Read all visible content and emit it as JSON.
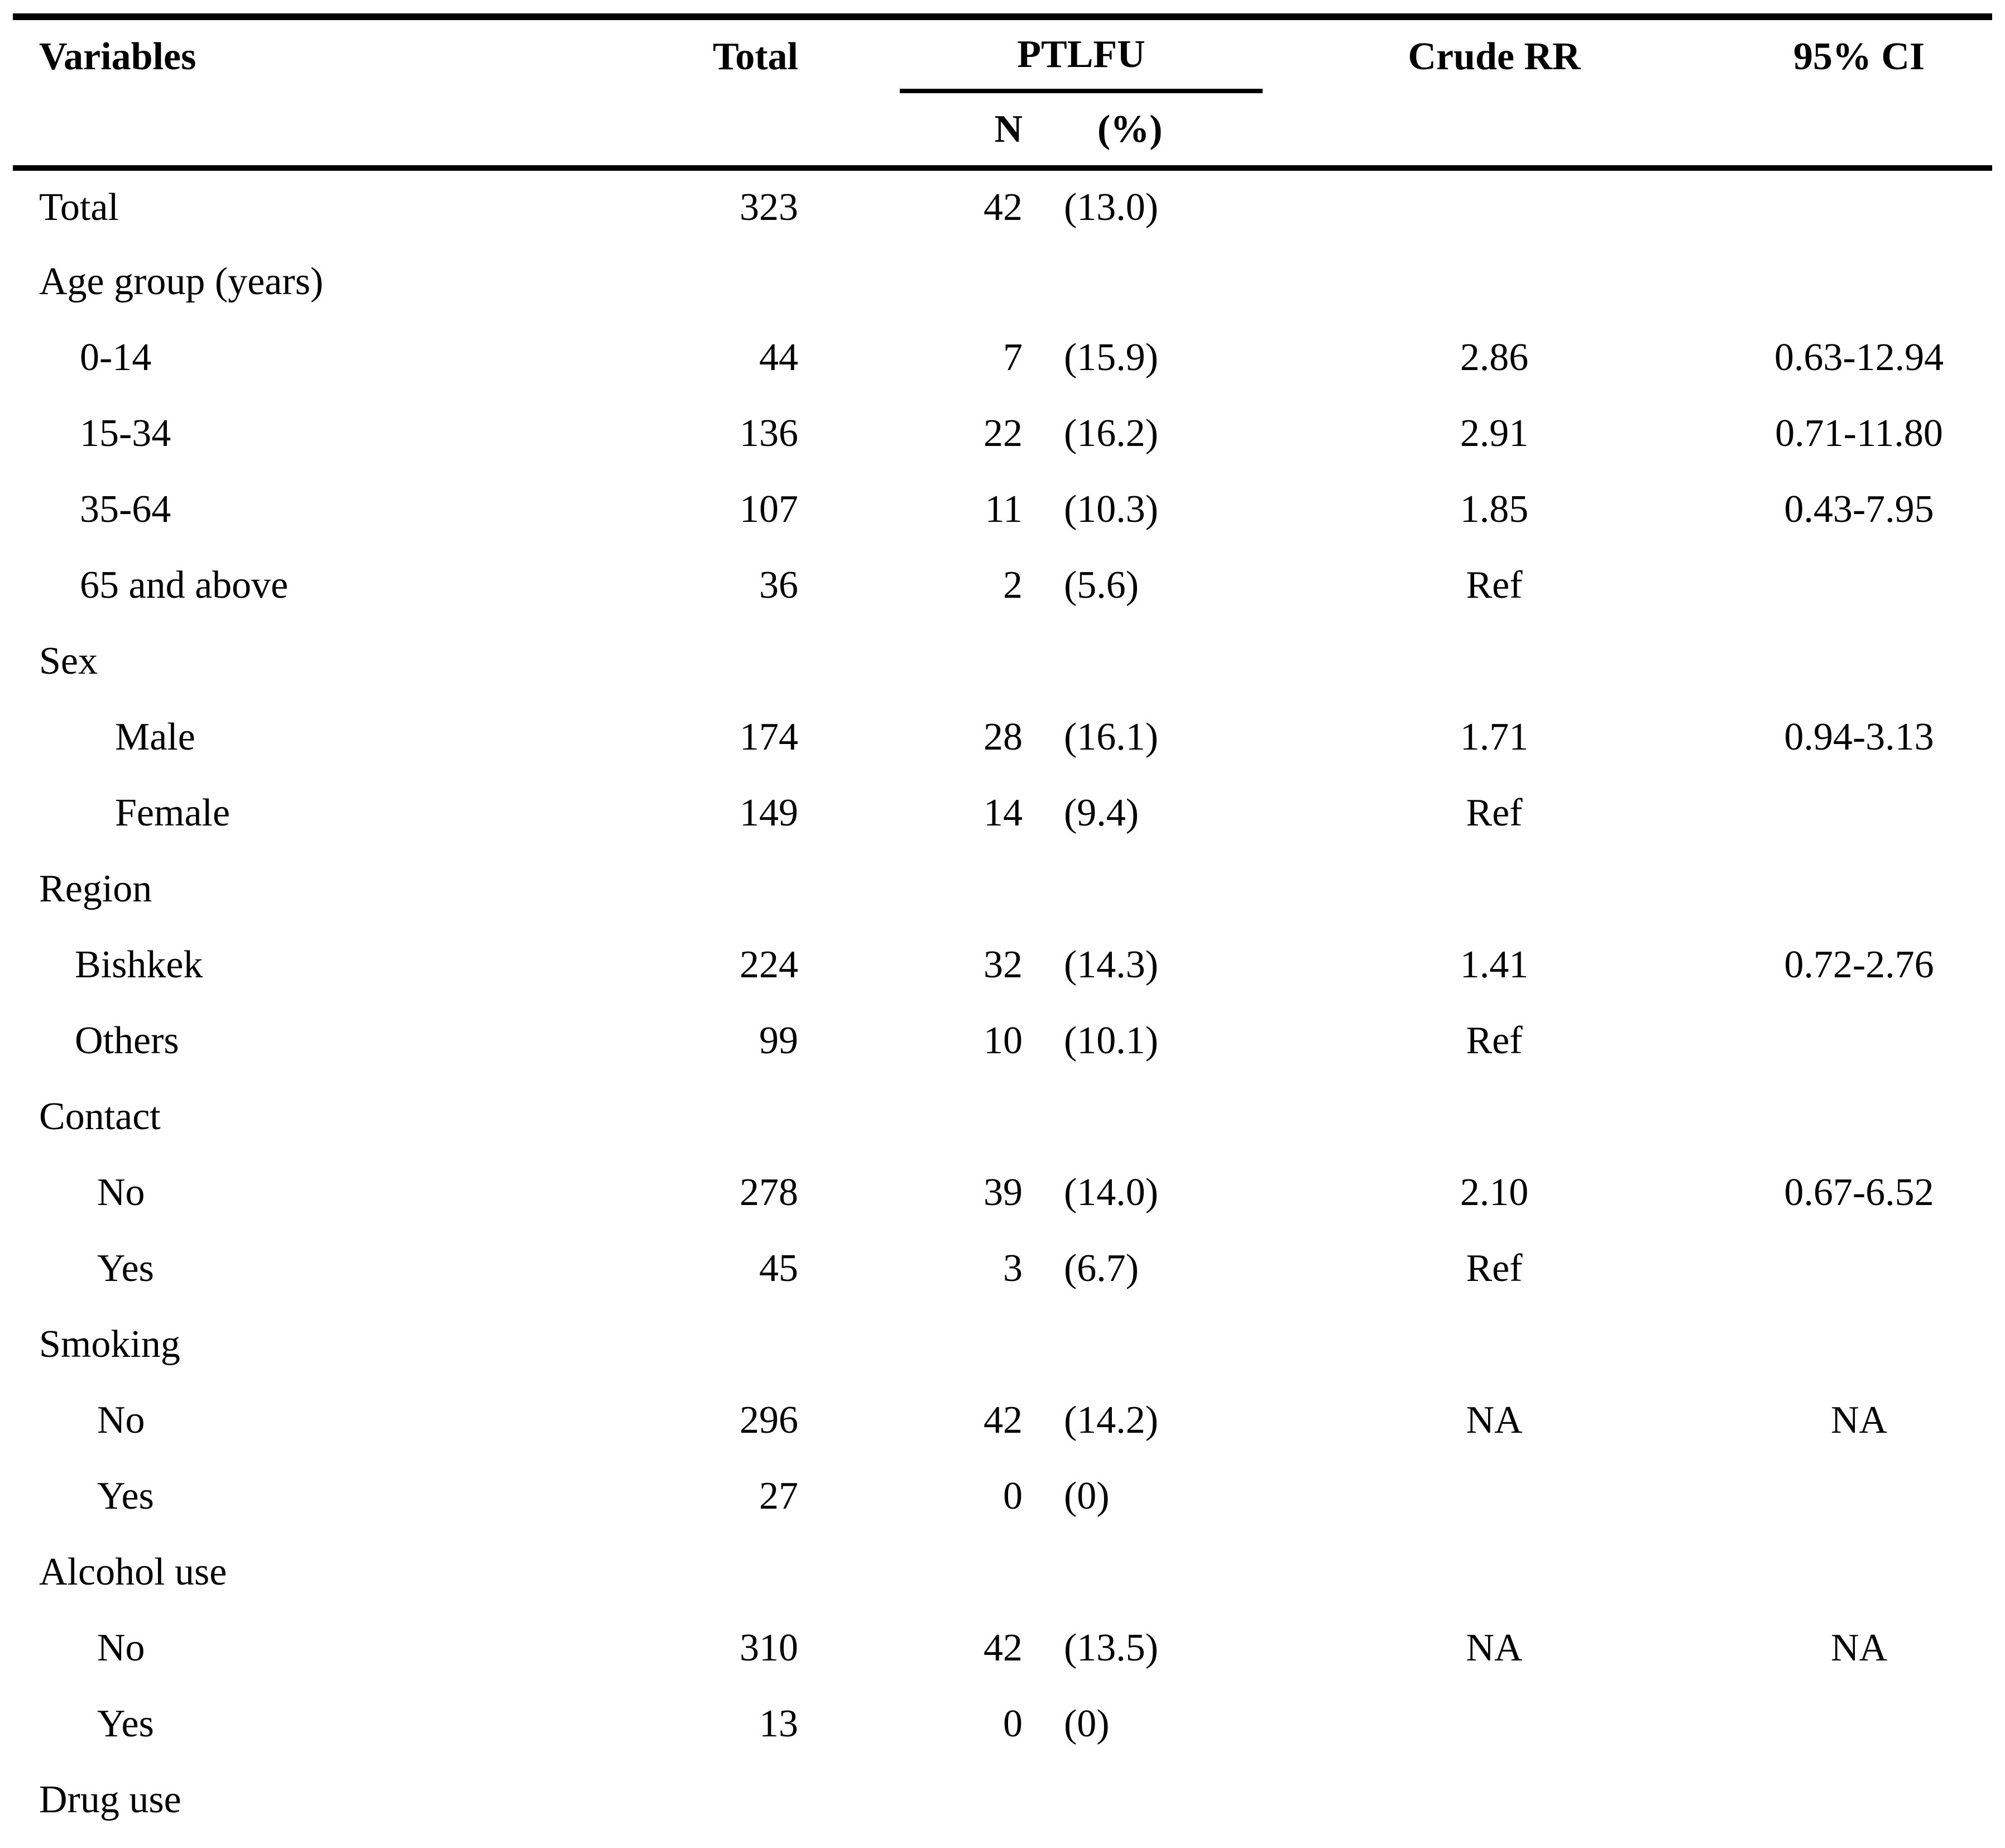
{
  "colors": {
    "text": "#000000",
    "background": "#ffffff",
    "rule": "#000000"
  },
  "table": {
    "headers": {
      "variables": "Variables",
      "total": "Total",
      "ptlfu": "PTLFU",
      "n": "N",
      "pct": "(%)",
      "crude_rr": "Crude RR",
      "ci": "95% CI"
    },
    "rows": [
      {
        "label": "Total",
        "indent": 0,
        "total": "323",
        "n": "42",
        "pct": "(13.0)",
        "rr": "",
        "ci": ""
      },
      {
        "label": "Age group (years)",
        "indent": 0,
        "total": "",
        "n": "",
        "pct": "",
        "rr": "",
        "ci": ""
      },
      {
        "label": "0-14",
        "indent": 2,
        "total": "44",
        "n": "7",
        "pct": "(15.9)",
        "rr": "2.86",
        "ci": "0.63-12.94"
      },
      {
        "label": "15-34",
        "indent": 2,
        "total": "136",
        "n": "22",
        "pct": "(16.2)",
        "rr": "2.91",
        "ci": "0.71-11.80"
      },
      {
        "label": "35-64",
        "indent": 2,
        "total": "107",
        "n": "11",
        "pct": "(10.3)",
        "rr": "1.85",
        "ci": "0.43-7.95"
      },
      {
        "label": "65 and above",
        "indent": 2,
        "total": "36",
        "n": "2",
        "pct": "(5.6)",
        "rr": "Ref",
        "ci": ""
      },
      {
        "label": "Sex",
        "indent": 0,
        "total": "",
        "n": "",
        "pct": "",
        "rr": "",
        "ci": ""
      },
      {
        "label": "Male",
        "indent": 4,
        "total": "174",
        "n": "28",
        "pct": "(16.1)",
        "rr": "1.71",
        "ci": "0.94-3.13"
      },
      {
        "label": "Female",
        "indent": 4,
        "total": "149",
        "n": "14",
        "pct": "(9.4)",
        "rr": "Ref",
        "ci": ""
      },
      {
        "label": "Region",
        "indent": 0,
        "total": "",
        "n": "",
        "pct": "",
        "rr": "",
        "ci": ""
      },
      {
        "label": "Bishkek",
        "indent": 1,
        "total": "224",
        "n": "32",
        "pct": "(14.3)",
        "rr": "1.41",
        "ci": "0.72-2.76"
      },
      {
        "label": "Others",
        "indent": 1,
        "total": "99",
        "n": "10",
        "pct": "(10.1)",
        "rr": "Ref",
        "ci": ""
      },
      {
        "label": "Contact",
        "indent": 0,
        "total": "",
        "n": "",
        "pct": "",
        "rr": "",
        "ci": ""
      },
      {
        "label": "No",
        "indent": 3,
        "total": "278",
        "n": "39",
        "pct": "(14.0)",
        "rr": "2.10",
        "ci": "0.67-6.52"
      },
      {
        "label": "Yes",
        "indent": 3,
        "total": "45",
        "n": "3",
        "pct": "(6.7)",
        "rr": "Ref",
        "ci": ""
      },
      {
        "label": "Smoking",
        "indent": 0,
        "total": "",
        "n": "",
        "pct": "",
        "rr": "",
        "ci": ""
      },
      {
        "label": "No",
        "indent": 3,
        "total": "296",
        "n": "42",
        "pct": "(14.2)",
        "rr": "NA",
        "ci": "NA"
      },
      {
        "label": "Yes",
        "indent": 3,
        "total": "27",
        "n": "0",
        "pct": "(0)",
        "rr": "",
        "ci": ""
      },
      {
        "label": "Alcohol use",
        "indent": 0,
        "total": "",
        "n": "",
        "pct": "",
        "rr": "",
        "ci": ""
      },
      {
        "label": "No",
        "indent": 3,
        "total": "310",
        "n": "42",
        "pct": "(13.5)",
        "rr": "NA",
        "ci": "NA"
      },
      {
        "label": "Yes",
        "indent": 3,
        "total": "13",
        "n": "0",
        "pct": "(0)",
        "rr": "",
        "ci": ""
      },
      {
        "label": "Drug use",
        "indent": 0,
        "total": "",
        "n": "",
        "pct": "",
        "rr": "",
        "ci": ""
      }
    ]
  }
}
